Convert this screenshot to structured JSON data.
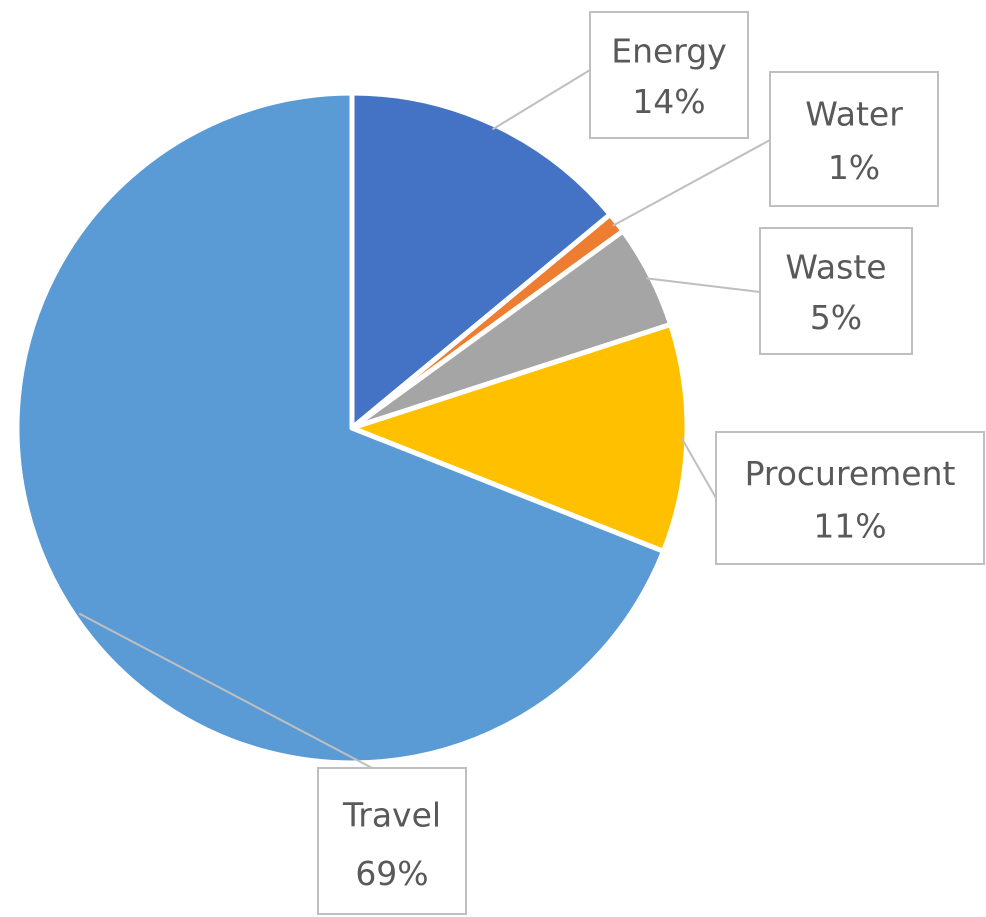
{
  "chart_data": {
    "type": "pie",
    "title": "",
    "slices": [
      {
        "label": "Energy",
        "value": 14,
        "value_label": "14%",
        "color": "#4472C4"
      },
      {
        "label": "Water",
        "value": 1,
        "value_label": "1%",
        "color": "#ED7D31"
      },
      {
        "label": "Waste",
        "value": 5,
        "value_label": "5%",
        "color": "#A5A5A5"
      },
      {
        "label": "Procurement",
        "value": 11,
        "value_label": "11%",
        "color": "#FFC000"
      },
      {
        "label": "Travel",
        "value": 69,
        "value_label": "69%",
        "color": "#5B9BD5"
      }
    ],
    "start_angle": "12 o'clock",
    "direction": "clockwise",
    "label_style": "callout boxes with leader lines",
    "legend": "none"
  }
}
